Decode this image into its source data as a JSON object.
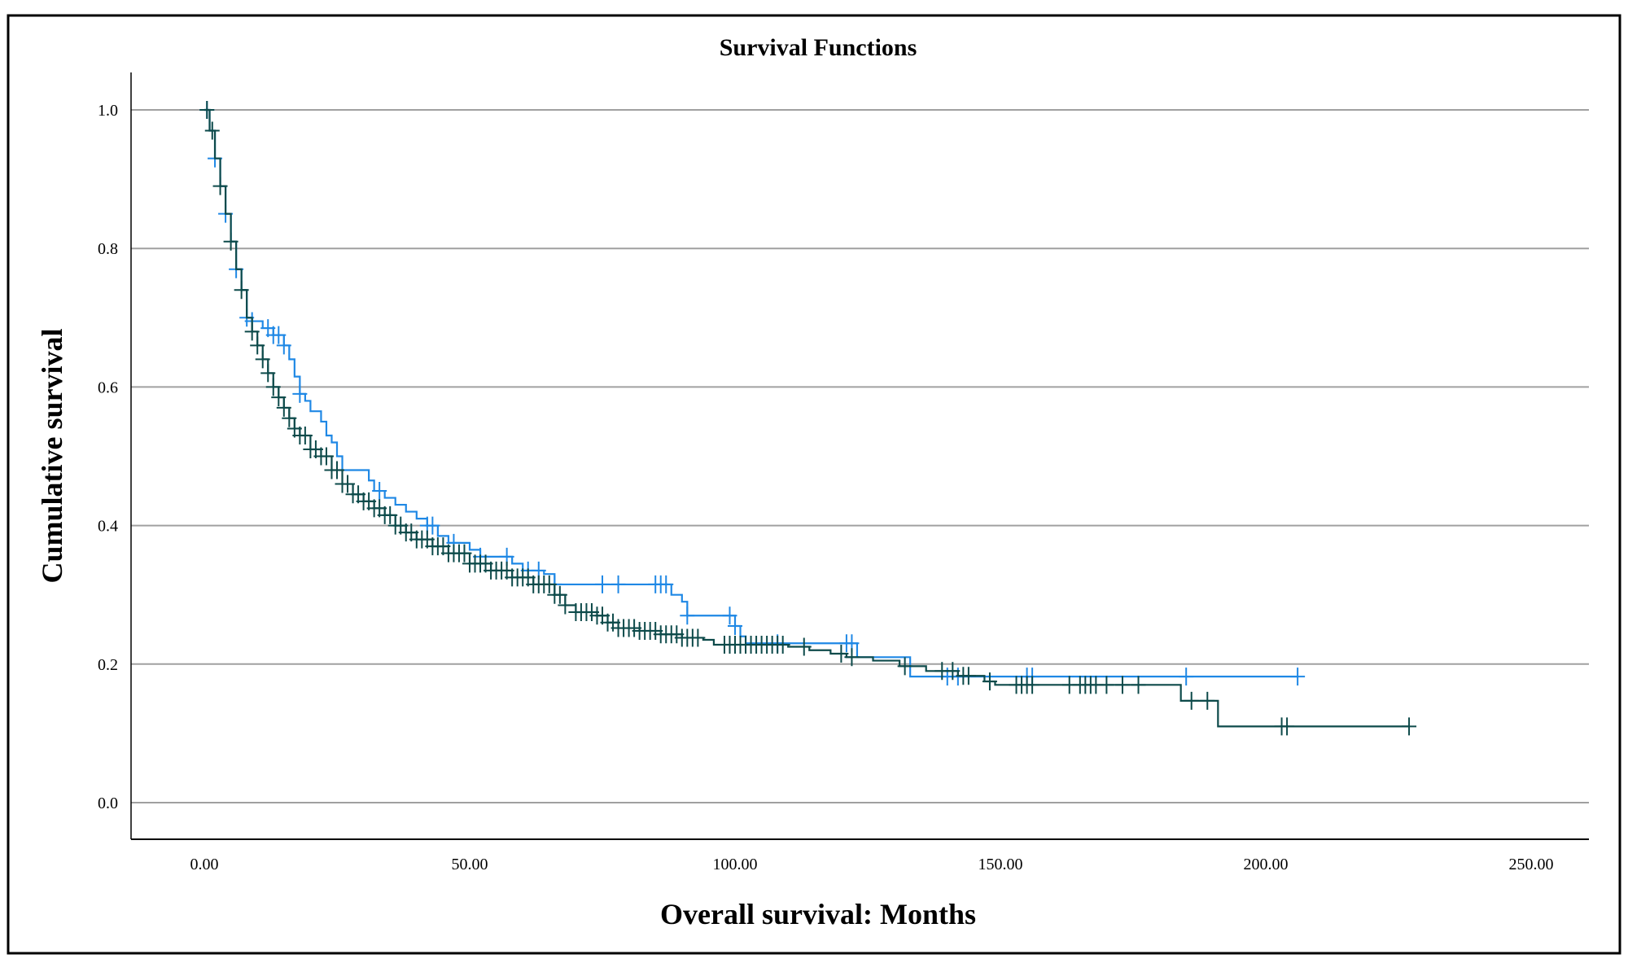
{
  "chart_data": {
    "type": "line",
    "subtype": "kaplan-meier step",
    "title": "Survival Functions",
    "xlabel": "Overall survival: Months",
    "ylabel": "Cumulative survival",
    "xlim": [
      -14,
      261
    ],
    "ylim": [
      -0.053,
      1.054
    ],
    "xticks": [
      "0.00",
      "50.00",
      "100.00",
      "150.00",
      "200.00",
      "250.00"
    ],
    "xtick_values": [
      0,
      50,
      100,
      150,
      200,
      250
    ],
    "yticks": [
      "0.0",
      "0.2",
      "0.4",
      "0.6",
      "0.8",
      "1.0"
    ],
    "ytick_values": [
      0,
      0.2,
      0.4,
      0.6,
      0.8,
      1.0
    ],
    "grid": "horizontal",
    "legend": "none",
    "series": [
      {
        "color": "#1f88e5",
        "steps": [
          [
            0,
            1.0
          ],
          [
            1,
            0.97
          ],
          [
            2,
            0.93
          ],
          [
            3,
            0.89
          ],
          [
            4,
            0.85
          ],
          [
            5,
            0.81
          ],
          [
            6,
            0.77
          ],
          [
            7,
            0.74
          ],
          [
            8,
            0.7
          ],
          [
            9,
            0.695
          ],
          [
            11,
            0.685
          ],
          [
            13,
            0.675
          ],
          [
            15,
            0.66
          ],
          [
            16,
            0.64
          ],
          [
            17,
            0.615
          ],
          [
            18,
            0.59
          ],
          [
            19,
            0.58
          ],
          [
            20,
            0.565
          ],
          [
            22,
            0.55
          ],
          [
            23,
            0.53
          ],
          [
            24,
            0.52
          ],
          [
            25,
            0.5
          ],
          [
            26,
            0.48
          ],
          [
            30,
            0.48
          ],
          [
            31,
            0.465
          ],
          [
            32,
            0.45
          ],
          [
            34,
            0.44
          ],
          [
            36,
            0.43
          ],
          [
            38,
            0.42
          ],
          [
            40,
            0.41
          ],
          [
            42,
            0.4
          ],
          [
            44,
            0.385
          ],
          [
            46,
            0.375
          ],
          [
            50,
            0.365
          ],
          [
            52,
            0.355
          ],
          [
            57,
            0.355
          ],
          [
            58,
            0.345
          ],
          [
            60,
            0.335
          ],
          [
            64,
            0.33
          ],
          [
            66,
            0.315
          ],
          [
            87,
            0.315
          ],
          [
            88,
            0.3
          ],
          [
            90,
            0.29
          ],
          [
            91,
            0.27
          ],
          [
            99,
            0.27
          ],
          [
            100,
            0.255
          ],
          [
            101,
            0.24
          ],
          [
            102,
            0.23
          ],
          [
            122,
            0.23
          ],
          [
            123,
            0.21
          ],
          [
            132,
            0.21
          ],
          [
            133,
            0.182
          ]
        ],
        "end": 206,
        "censored": [
          0.5,
          2,
          4,
          6,
          8,
          9,
          12,
          13,
          14,
          15,
          18,
          33,
          42,
          43,
          47,
          52,
          57,
          61,
          63,
          66,
          75,
          78,
          85,
          86,
          87,
          91,
          99,
          100,
          108,
          121,
          122,
          140,
          142,
          155,
          156,
          185,
          206
        ]
      },
      {
        "color": "#0d4a4a",
        "steps": [
          [
            0,
            1.0
          ],
          [
            1,
            0.97
          ],
          [
            2,
            0.93
          ],
          [
            3,
            0.89
          ],
          [
            4,
            0.85
          ],
          [
            5,
            0.81
          ],
          [
            6,
            0.77
          ],
          [
            7,
            0.74
          ],
          [
            8,
            0.7
          ],
          [
            9,
            0.68
          ],
          [
            10,
            0.66
          ],
          [
            11,
            0.64
          ],
          [
            12,
            0.62
          ],
          [
            13,
            0.6
          ],
          [
            14,
            0.585
          ],
          [
            15,
            0.57
          ],
          [
            16,
            0.555
          ],
          [
            17,
            0.54
          ],
          [
            18,
            0.53
          ],
          [
            20,
            0.51
          ],
          [
            22,
            0.5
          ],
          [
            24,
            0.48
          ],
          [
            26,
            0.46
          ],
          [
            28,
            0.445
          ],
          [
            30,
            0.435
          ],
          [
            32,
            0.425
          ],
          [
            34,
            0.415
          ],
          [
            36,
            0.4
          ],
          [
            38,
            0.39
          ],
          [
            40,
            0.38
          ],
          [
            43,
            0.37
          ],
          [
            46,
            0.36
          ],
          [
            50,
            0.345
          ],
          [
            54,
            0.335
          ],
          [
            58,
            0.325
          ],
          [
            62,
            0.315
          ],
          [
            66,
            0.3
          ],
          [
            68,
            0.285
          ],
          [
            70,
            0.275
          ],
          [
            74,
            0.27
          ],
          [
            76,
            0.26
          ],
          [
            78,
            0.252
          ],
          [
            82,
            0.248
          ],
          [
            86,
            0.243
          ],
          [
            90,
            0.238
          ],
          [
            94,
            0.235
          ],
          [
            96,
            0.228
          ],
          [
            110,
            0.225
          ],
          [
            114,
            0.22
          ],
          [
            118,
            0.215
          ],
          [
            121,
            0.21
          ],
          [
            126,
            0.205
          ],
          [
            131,
            0.197
          ],
          [
            136,
            0.19
          ],
          [
            142,
            0.183
          ],
          [
            147,
            0.175
          ],
          [
            149,
            0.17
          ],
          [
            184,
            0.147
          ],
          [
            191,
            0.11
          ]
        ],
        "end": 227,
        "censored": [
          0.5,
          1.5,
          3,
          5,
          7,
          9,
          10,
          11,
          12,
          13,
          14,
          15,
          16,
          17,
          18,
          19,
          20,
          21,
          22,
          23,
          24,
          25,
          26,
          27,
          28,
          29,
          30,
          31,
          32,
          33,
          34,
          35,
          36,
          37,
          38,
          39,
          40,
          41,
          42,
          43,
          44,
          45,
          46,
          47,
          48,
          49,
          50,
          51,
          52,
          53,
          54,
          55,
          56,
          57,
          58,
          59,
          60,
          61,
          62,
          63,
          64,
          65,
          66,
          67,
          68,
          70,
          71,
          72,
          73,
          74,
          75,
          76,
          77,
          78,
          79,
          80,
          81,
          82,
          83,
          84,
          85,
          86,
          87,
          88,
          89,
          90,
          91,
          92,
          93,
          98,
          99,
          100,
          101,
          102,
          103,
          104,
          105,
          106,
          107,
          108,
          109,
          113,
          120,
          122,
          132,
          139,
          141,
          143,
          144,
          148,
          153,
          154,
          155,
          156,
          163,
          165,
          166,
          167,
          168,
          170,
          173,
          176,
          186,
          189,
          203,
          204,
          227
        ]
      }
    ]
  }
}
